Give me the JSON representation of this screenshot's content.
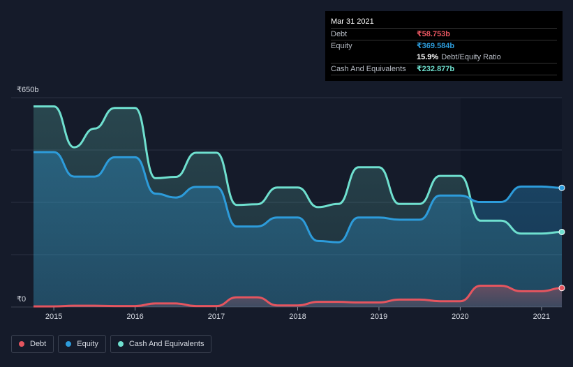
{
  "tooltip": {
    "date": "Mar 31 2021",
    "debt_label": "Debt",
    "debt_value": "₹58.753b",
    "equity_label": "Equity",
    "equity_value": "₹369.584b",
    "ratio_value": "15.9%",
    "ratio_label": "Debt/Equity Ratio",
    "cash_label": "Cash And Equivalents",
    "cash_value": "₹232.877b"
  },
  "legend": [
    {
      "label": "Debt",
      "color": "#e5555f"
    },
    {
      "label": "Equity",
      "color": "#2d9cdb"
    },
    {
      "label": "Cash And Equivalents",
      "color": "#6fe0cf"
    }
  ],
  "colors": {
    "debt": "#e5555f",
    "equity": "#2d9cdb",
    "cash": "#6fe0cf",
    "background": "#151b2a"
  },
  "chart_data": {
    "type": "area",
    "y_top_label": "₹650b",
    "y_bottom_label": "₹0",
    "ylim": [
      0,
      650
    ],
    "xlim": [
      2014.75,
      2021.25
    ],
    "x_ticks": [
      {
        "value": 2015,
        "label": "2015"
      },
      {
        "value": 2016,
        "label": "2016"
      },
      {
        "value": 2017,
        "label": "2017"
      },
      {
        "value": 2018,
        "label": "2018"
      },
      {
        "value": 2019,
        "label": "2019"
      },
      {
        "value": 2020,
        "label": "2020"
      },
      {
        "value": 2021,
        "label": "2021"
      }
    ],
    "grid": true,
    "legend_position": "bottom-left",
    "series": [
      {
        "name": "Cash And Equivalents",
        "key": "cash",
        "points": [
          [
            2014.75,
            623
          ],
          [
            2015.0,
            623
          ],
          [
            2015.25,
            496
          ],
          [
            2015.5,
            554
          ],
          [
            2015.75,
            618
          ],
          [
            2016.0,
            618
          ],
          [
            2016.25,
            400
          ],
          [
            2016.5,
            404
          ],
          [
            2016.75,
            479
          ],
          [
            2017.0,
            479
          ],
          [
            2017.25,
            317
          ],
          [
            2017.5,
            319
          ],
          [
            2017.75,
            371
          ],
          [
            2018.0,
            371
          ],
          [
            2018.25,
            310
          ],
          [
            2018.5,
            320
          ],
          [
            2018.75,
            434
          ],
          [
            2019.0,
            434
          ],
          [
            2019.25,
            320
          ],
          [
            2019.5,
            320
          ],
          [
            2019.75,
            407
          ],
          [
            2020.0,
            407
          ],
          [
            2020.25,
            268
          ],
          [
            2020.5,
            268
          ],
          [
            2020.75,
            228
          ],
          [
            2021.0,
            228
          ],
          [
            2021.25,
            233
          ]
        ]
      },
      {
        "name": "Equity",
        "key": "equity",
        "points": [
          [
            2014.75,
            481
          ],
          [
            2015.0,
            481
          ],
          [
            2015.25,
            405
          ],
          [
            2015.5,
            405
          ],
          [
            2015.75,
            465
          ],
          [
            2016.0,
            465
          ],
          [
            2016.25,
            352
          ],
          [
            2016.5,
            340
          ],
          [
            2016.75,
            373
          ],
          [
            2017.0,
            373
          ],
          [
            2017.25,
            250
          ],
          [
            2017.5,
            250
          ],
          [
            2017.75,
            278
          ],
          [
            2018.0,
            278
          ],
          [
            2018.25,
            205
          ],
          [
            2018.5,
            201
          ],
          [
            2018.75,
            278
          ],
          [
            2019.0,
            278
          ],
          [
            2019.25,
            271
          ],
          [
            2019.5,
            271
          ],
          [
            2019.75,
            346
          ],
          [
            2020.0,
            346
          ],
          [
            2020.25,
            326
          ],
          [
            2020.5,
            326
          ],
          [
            2020.75,
            374
          ],
          [
            2021.0,
            374
          ],
          [
            2021.25,
            370
          ]
        ]
      },
      {
        "name": "Debt",
        "key": "debt",
        "points": [
          [
            2014.75,
            2
          ],
          [
            2015.0,
            2
          ],
          [
            2015.25,
            4
          ],
          [
            2015.5,
            4
          ],
          [
            2015.75,
            3
          ],
          [
            2016.0,
            3
          ],
          [
            2016.25,
            11
          ],
          [
            2016.5,
            11
          ],
          [
            2016.75,
            3
          ],
          [
            2017.0,
            3
          ],
          [
            2017.25,
            30
          ],
          [
            2017.5,
            30
          ],
          [
            2017.75,
            5
          ],
          [
            2018.0,
            5
          ],
          [
            2018.25,
            16
          ],
          [
            2018.5,
            16
          ],
          [
            2018.75,
            14
          ],
          [
            2019.0,
            14
          ],
          [
            2019.25,
            23
          ],
          [
            2019.5,
            23
          ],
          [
            2019.75,
            18
          ],
          [
            2020.0,
            18
          ],
          [
            2020.25,
            66
          ],
          [
            2020.5,
            66
          ],
          [
            2020.75,
            49
          ],
          [
            2021.0,
            49
          ],
          [
            2021.25,
            59
          ]
        ]
      }
    ]
  }
}
